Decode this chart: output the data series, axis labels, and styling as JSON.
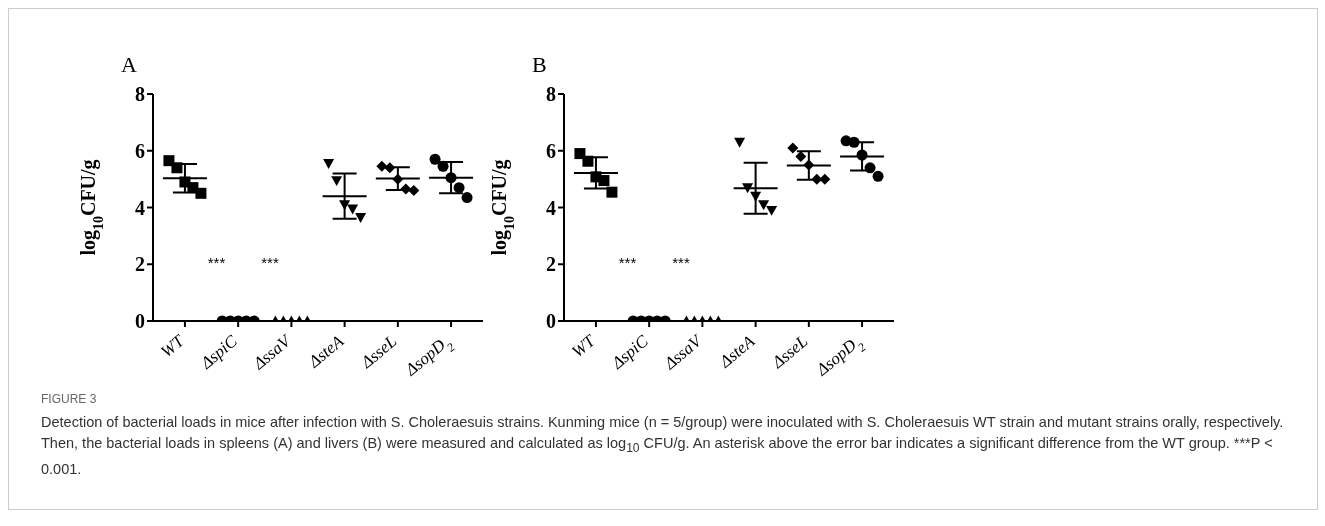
{
  "chart_data": [
    {
      "type": "scatter",
      "title": "A",
      "ylabel": "log$_{10}$CFU/g",
      "categories": [
        "WT",
        "ΔspiC",
        "ΔssaV",
        "ΔsteA",
        "ΔsseL",
        "ΔsopD$_{2}$"
      ],
      "ylim": [
        0,
        8
      ],
      "yticks": [
        0,
        2,
        4,
        6,
        8
      ],
      "annotations": [
        "***",
        "***"
      ],
      "series": [
        {
          "type": "scatter",
          "color": "#000000",
          "marker": "square",
          "x": [
            "WT",
            "WT",
            "WT",
            "WT",
            "WT"
          ],
          "values": [
            5.65,
            5.4,
            4.9,
            4.7,
            4.5
          ]
        },
        {
          "type": "scatter",
          "color": "#000000",
          "marker": "circle",
          "x": [
            "ΔspiC",
            "ΔspiC",
            "ΔspiC",
            "ΔspiC",
            "ΔspiC"
          ],
          "values": [
            0,
            0,
            0,
            0,
            0
          ]
        },
        {
          "type": "scatter",
          "color": "#000000",
          "marker": "triangle",
          "x": [
            "ΔssaV",
            "ΔssaV",
            "ΔssaV",
            "ΔssaV",
            "ΔssaV"
          ],
          "values": [
            0,
            0,
            0,
            0,
            0
          ]
        },
        {
          "type": "scatter",
          "color": "#000000",
          "marker": "triangle-down",
          "x": [
            "ΔsteA",
            "ΔsteA",
            "ΔsteA",
            "ΔsteA",
            "ΔsteA"
          ],
          "values": [
            5.55,
            4.95,
            4.1,
            3.95,
            3.65
          ]
        },
        {
          "type": "scatter",
          "color": "#000000",
          "marker": "diamond",
          "x": [
            "ΔsseL",
            "ΔsseL",
            "ΔsseL",
            "ΔsseL",
            "ΔsseL"
          ],
          "values": [
            5.45,
            5.4,
            5.0,
            4.65,
            4.6
          ]
        },
        {
          "type": "scatter",
          "color": "#000000",
          "marker": "circle",
          "x": [
            "ΔsopD$_{2}$",
            "ΔsopD$_{2}$",
            "ΔsopD$_{2}$",
            "ΔsopD$_{2}$",
            "ΔsopD$_{2}$"
          ],
          "values": [
            5.7,
            5.45,
            5.05,
            4.7,
            4.35
          ]
        },
        {
          "type": "box",
          "color": "#000000",
          "boxes": [
            {
              "low": 4.53,
              "q1": 5.03,
              "median": 5.03,
              "q3": 5.03,
              "high": 5.53
            },
            null,
            null,
            {
              "low": 3.6,
              "q1": 4.4,
              "median": 4.4,
              "q3": 4.4,
              "high": 5.2
            },
            {
              "low": 4.62,
              "q1": 5.02,
              "median": 5.02,
              "q3": 5.02,
              "high": 5.42
            },
            {
              "low": 4.5,
              "q1": 5.05,
              "median": 5.05,
              "q3": 5.05,
              "high": 5.6
            }
          ]
        }
      ]
    },
    {
      "type": "scatter",
      "title": "B",
      "ylabel": "log$_{10}$CFU/g",
      "categories": [
        "WT",
        "ΔspiC",
        "ΔssaV",
        "ΔsteA",
        "ΔsseL",
        "ΔsopD$_{2}$"
      ],
      "ylim": [
        0,
        8
      ],
      "yticks": [
        0,
        2,
        4,
        6,
        8
      ],
      "annotations": [
        "***",
        "***"
      ],
      "series": [
        {
          "type": "scatter",
          "color": "#000000",
          "marker": "square",
          "x": [
            "WT",
            "WT",
            "WT",
            "WT",
            "WT"
          ],
          "values": [
            5.9,
            5.63,
            5.08,
            4.95,
            4.54
          ]
        },
        {
          "type": "scatter",
          "color": "#000000",
          "marker": "circle",
          "x": [
            "ΔspiC",
            "ΔspiC",
            "ΔspiC",
            "ΔspiC",
            "ΔspiC"
          ],
          "values": [
            0,
            0,
            0,
            0,
            0
          ]
        },
        {
          "type": "scatter",
          "color": "#000000",
          "marker": "triangle",
          "x": [
            "ΔssaV",
            "ΔssaV",
            "ΔssaV",
            "ΔssaV",
            "ΔssaV"
          ],
          "values": [
            0,
            0,
            0,
            0,
            0
          ]
        },
        {
          "type": "scatter",
          "color": "#000000",
          "marker": "triangle-down",
          "x": [
            "ΔsteA",
            "ΔsteA",
            "ΔsteA",
            "ΔsteA",
            "ΔsteA"
          ],
          "values": [
            6.3,
            4.7,
            4.4,
            4.1,
            3.9
          ]
        },
        {
          "type": "scatter",
          "color": "#000000",
          "marker": "diamond",
          "x": [
            "ΔsseL",
            "ΔsseL",
            "ΔsseL",
            "ΔsseL",
            "ΔsseL"
          ],
          "values": [
            6.1,
            5.8,
            5.5,
            5.0,
            5.0
          ]
        },
        {
          "type": "scatter",
          "color": "#000000",
          "marker": "circle",
          "x": [
            "ΔsopD$_{2}$",
            "ΔsopD$_{2}$",
            "ΔsopD$_{2}$",
            "ΔsopD$_{2}$",
            "ΔsopD$_{2}$"
          ],
          "values": [
            6.35,
            6.3,
            5.85,
            5.4,
            5.1
          ]
        },
        {
          "type": "box",
          "color": "#000000",
          "boxes": [
            {
              "low": 4.67,
              "q1": 5.22,
              "median": 5.22,
              "q3": 5.22,
              "high": 5.77
            },
            null,
            null,
            {
              "low": 3.78,
              "q1": 4.68,
              "median": 4.68,
              "q3": 4.68,
              "high": 5.58
            },
            {
              "low": 4.98,
              "q1": 5.48,
              "median": 5.48,
              "q3": 5.48,
              "high": 5.98
            },
            {
              "low": 5.3,
              "q1": 5.8,
              "median": 5.8,
              "q3": 5.8,
              "high": 6.3
            }
          ]
        }
      ]
    },
    {
      "type": "other",
      "title": "FIGURE 3",
      "annotations": [
        "Detection of bacterial loads in mice after infection with S. Choleraesuis strains. Kunming mice (n = 5/group) were inoculated with S. Choleraesuis WT strain and mutant strains orally, respectively. Then, the bacterial loads in spleens (A) and livers (B) were measured and calculated as log$_{10}$ CFU/g. An asterisk above the error bar indicates a significant difference from the WT group. ***P < 0.001."
      ]
    }
  ]
}
